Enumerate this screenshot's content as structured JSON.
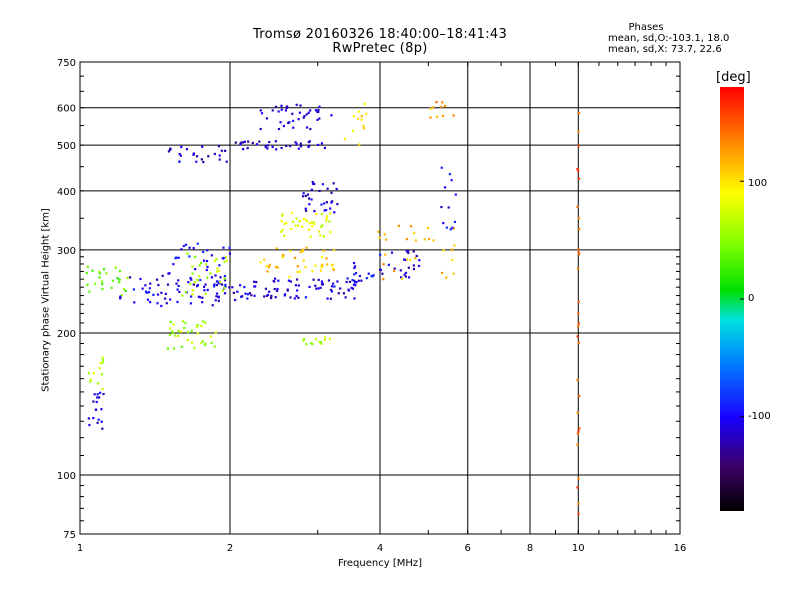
{
  "header": {
    "title_line1": "Tromsø 20160326 18:40:00–18:41:43",
    "title_line2": "RwPretec (8p)",
    "phases_title": "Phases",
    "phases_line1": "mean, sd,O:-103.1, 18.0",
    "phases_line2": "mean, sd,X:  73.7, 22.6"
  },
  "colorbar": {
    "unit_label": "[deg]",
    "ticks": [
      "100",
      "0",
      "-100"
    ],
    "tick_values": [
      100,
      0,
      -100
    ],
    "range": [
      -180,
      180
    ]
  },
  "chart_data": {
    "type": "scatter",
    "xlabel": "Frequency [MHz]",
    "ylabel": "Stationary phase Virtual Height [km]",
    "x_scale": "log",
    "y_scale": "log",
    "xlim": [
      1,
      16
    ],
    "ylim": [
      75,
      750
    ],
    "x_ticks": [
      1,
      2,
      4,
      6,
      8,
      10,
      16
    ],
    "x_tick_labels": [
      "1",
      "2",
      "4",
      "6",
      "8",
      "10",
      "16"
    ],
    "y_ticks": [
      75,
      100,
      200,
      300,
      400,
      500,
      600,
      750
    ],
    "y_tick_labels": [
      "75",
      "100",
      "200",
      "300",
      "400",
      "500",
      "600",
      "750"
    ],
    "grid": true,
    "series": [
      {
        "clusters": [
          {
            "x_range": [
              1.2,
              2.1
            ],
            "y_range": [
              228,
              265
            ],
            "phase": -110,
            "count": 70
          },
          {
            "x_range": [
              2.1,
              3.6
            ],
            "y_range": [
              236,
              262
            ],
            "phase": -110,
            "count": 80
          },
          {
            "x_range": [
              1.03,
              1.25
            ],
            "y_range": [
              240,
              278
            ],
            "phase": 40,
            "count": 25
          },
          {
            "x_range": [
              1.5,
              2.0
            ],
            "y_range": [
              250,
              310
            ],
            "phase": -100,
            "count": 40
          },
          {
            "x_range": [
              1.6,
              2.0
            ],
            "y_range": [
              240,
              300
            ],
            "phase": 60,
            "count": 30
          },
          {
            "x_range": [
              1.5,
              1.9
            ],
            "y_range": [
              185,
              215
            ],
            "phase": 60,
            "count": 35
          },
          {
            "x_range": [
              2.8,
              3.2
            ],
            "y_range": [
              188,
              196
            ],
            "phase": 60,
            "count": 12
          },
          {
            "x_range": [
              2.5,
              3.2
            ],
            "y_range": [
              320,
              360
            ],
            "phase": 80,
            "count": 40
          },
          {
            "x_range": [
              2.3,
              3.3
            ],
            "y_range": [
              260,
              305
            ],
            "phase": 110,
            "count": 40
          },
          {
            "x_range": [
              2.8,
              3.3
            ],
            "y_range": [
              360,
              420
            ],
            "phase": -110,
            "count": 30
          },
          {
            "x_range": [
              1.5,
              2.0
            ],
            "y_range": [
              460,
              500
            ],
            "phase": -110,
            "count": 25
          },
          {
            "x_range": [
              2.0,
              3.1
            ],
            "y_range": [
              490,
              510
            ],
            "phase": -115,
            "count": 35
          },
          {
            "x_range": [
              2.3,
              3.2
            ],
            "y_range": [
              540,
              610
            ],
            "phase": -110,
            "count": 40
          },
          {
            "x_range": [
              3.5,
              3.9
            ],
            "y_range": [
              255,
              285
            ],
            "phase": -100,
            "count": 15
          },
          {
            "x_range": [
              3.9,
              4.8
            ],
            "y_range": [
              262,
              300
            ],
            "phase": -110,
            "count": 25
          },
          {
            "x_range": [
              3.9,
              5.7
            ],
            "y_range": [
              260,
              340
            ],
            "phase": 120,
            "count": 30
          },
          {
            "x_range": [
              5.3,
              5.7
            ],
            "y_range": [
              330,
              450
            ],
            "phase": -100,
            "count": 12
          },
          {
            "x_range": [
              5.0,
              5.7
            ],
            "y_range": [
              560,
              640
            ],
            "phase": 130,
            "count": 10
          },
          {
            "x_range": [
              1.04,
              1.12
            ],
            "y_range": [
              125,
              150
            ],
            "phase": -110,
            "count": 18
          },
          {
            "x_range": [
              1.04,
              1.12
            ],
            "y_range": [
              150,
              180
            ],
            "phase": 60,
            "count": 12
          },
          {
            "x_range": [
              9.95,
              10.05
            ],
            "y_range": [
              80,
              600
            ],
            "phase": 150,
            "count": 30
          },
          {
            "x_range": [
              3.4,
              3.8
            ],
            "y_range": [
              500,
              630
            ],
            "phase": 100,
            "count": 12
          }
        ]
      }
    ]
  }
}
